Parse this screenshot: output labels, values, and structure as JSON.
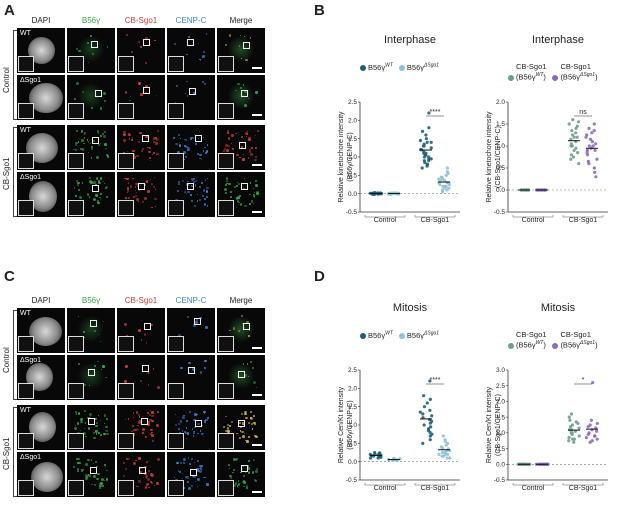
{
  "panels": {
    "A": {
      "letter": "A",
      "headers": [
        "DAPI",
        "B56γ",
        "CB-Sgo1",
        "CENP-C",
        "Merge"
      ],
      "rows": [
        "WT",
        "ΔSgo1",
        "WT",
        "ΔSgo1"
      ],
      "groups": [
        "Control",
        "CB-Sgo1"
      ]
    },
    "C": {
      "letter": "C",
      "headers": [
        "DAPI",
        "B56γ",
        "CB-Sgo1",
        "CENP-C",
        "Merge"
      ],
      "rows": [
        "WT",
        "ΔSgo1",
        "WT",
        "ΔSgo1"
      ],
      "groups": [
        "Control",
        "CB-Sgo1"
      ]
    },
    "B": {
      "letter": "B"
    },
    "D": {
      "letter": "D"
    }
  },
  "colors": {
    "dapi": "#bdbdbd",
    "b56": "#3aa34a",
    "sgo": "#d23a3a",
    "cenp": "#3b7fd6",
    "teal_dark": "#1f5f7a",
    "teal_light": "#8ec3d4",
    "grey_green": "#6d9e8c",
    "purple": "#8a6bbf"
  },
  "chart_data": [
    {
      "id": "B-left",
      "type": "scatter",
      "title": "Interphase",
      "ylabel": "Relative kinetochore intensity (B56γ/CENP-C)",
      "ylim": [
        -0.5,
        2.5
      ],
      "yticks": [
        "-0.5",
        "0.0",
        "0.5",
        "1.0",
        "1.5",
        "2.0",
        "2.5"
      ],
      "categories": [
        "Control",
        "CB-Sgo1"
      ],
      "legend": [
        {
          "name": "B56γ",
          "sup": "WT"
        },
        {
          "name": "B56γ",
          "sup": "ΔSgo1"
        }
      ],
      "significance": "****",
      "series": [
        {
          "name": "B56γ WT",
          "values": [
            [
              0.02,
              -0.02,
              0.0,
              0.03,
              -0.01,
              0.01,
              0.0,
              0.02,
              -0.02,
              0.01,
              0.0,
              0.01,
              -0.01,
              0.02,
              0.0,
              0.01,
              0.0,
              -0.01,
              0.02,
              0.01
            ],
            [
              1.0,
              1.2,
              0.9,
              1.4,
              0.8,
              1.1,
              1.6,
              1.3,
              0.7,
              1.05,
              1.5,
              0.95,
              1.25,
              1.8,
              0.85,
              1.15,
              1.35,
              0.75,
              1.45,
              2.2,
              1.0,
              1.1,
              0.9,
              1.7,
              1.2,
              0.8,
              1.05,
              1.3,
              0.95,
              1.4
            ]
          ]
        },
        {
          "name": "B56γ ΔSgo1",
          "values": [
            [
              0.0,
              0.01,
              -0.01,
              0.02,
              0.0,
              0.01,
              -0.02,
              0.0,
              0.01,
              0.02,
              -0.01,
              0.0,
              0.01,
              0.0,
              0.02,
              -0.01,
              0.0,
              0.01
            ],
            [
              0.3,
              0.2,
              0.5,
              0.1,
              0.4,
              0.25,
              0.6,
              0.15,
              0.35,
              0.45,
              0.05,
              0.3,
              0.2,
              0.55,
              0.4,
              0.1,
              0.3,
              0.25,
              0.7,
              0.35,
              0.15,
              0.45,
              0.2,
              0.3
            ]
          ]
        }
      ]
    },
    {
      "id": "B-right",
      "type": "scatter",
      "title": "Interphase",
      "ylabel": "Relative kinetochore intensity (CB-Sgo1/CENP-C)",
      "ylim": [
        -0.5,
        2.0
      ],
      "yticks": [
        "-0.5",
        "0.0",
        "0.5",
        "1.0",
        "1.5",
        "2.0"
      ],
      "categories": [
        "Control",
        "CB-Sgo1"
      ],
      "legend": [
        {
          "name": "CB-Sgo1",
          "sub": "(B56γ",
          "sup": "WT"
        },
        {
          "name": "CB-Sgo1",
          "sub": "(B56γ",
          "sup": "ΔSgo1"
        }
      ],
      "significance": "ns",
      "series": [
        {
          "name": "CB-Sgo1 (B56γ WT)",
          "values": [
            [
              0.0,
              0.0,
              0.0,
              0.0,
              0.0,
              0.0,
              0.0,
              0.0,
              0.0,
              0.0,
              0.0,
              0.0,
              0.0,
              0.0,
              0.0,
              0.0
            ],
            [
              1.0,
              1.3,
              0.8,
              1.5,
              0.7,
              1.1,
              1.6,
              0.9,
              1.2,
              1.4,
              0.6,
              1.05,
              1.35,
              0.85,
              1.25,
              1.45,
              0.95,
              1.15,
              0.75,
              1.55,
              1.0,
              1.2
            ]
          ]
        },
        {
          "name": "CB-Sgo1 (B56γ ΔSgo1)",
          "values": [
            [
              0.0,
              0.0,
              0.0,
              0.0,
              0.0,
              0.0,
              0.0,
              0.0,
              0.0,
              0.0,
              0.0,
              0.0,
              0.0,
              0.0,
              0.0,
              0.0
            ],
            [
              0.9,
              1.2,
              0.6,
              1.4,
              0.5,
              1.0,
              1.5,
              0.8,
              1.1,
              1.3,
              0.4,
              0.95,
              1.25,
              0.7,
              1.15,
              0.3,
              0.85,
              1.05,
              0.65,
              1.35,
              0.9,
              1.0
            ]
          ]
        }
      ]
    },
    {
      "id": "D-left",
      "type": "scatter",
      "title": "Mitosis",
      "ylabel": "Relative Cen/Kt intensity (B56γ/CENP-C)",
      "ylim": [
        -0.5,
        2.5
      ],
      "yticks": [
        "-0.5",
        "0.0",
        "0.5",
        "1.0",
        "1.5",
        "2.0",
        "2.5"
      ],
      "categories": [
        "Control",
        "CB-Sgo1"
      ],
      "legend": [
        {
          "name": "B56γ",
          "sup": "WT"
        },
        {
          "name": "B56γ",
          "sup": "ΔSgo1"
        }
      ],
      "significance": "****",
      "series": [
        {
          "name": "B56γ WT",
          "values": [
            [
              0.15,
              0.2,
              0.1,
              0.25,
              0.18,
              0.12,
              0.22,
              0.16,
              0.2,
              0.14,
              0.1,
              0.24,
              0.17,
              0.13,
              0.19
            ],
            [
              1.0,
              1.3,
              0.8,
              1.6,
              0.6,
              1.1,
              1.8,
              0.9,
              1.4,
              0.7,
              1.2,
              2.2,
              0.85,
              1.05,
              1.5,
              0.5,
              1.25,
              0.95,
              1.7,
              0.75,
              1.15,
              1.35
            ]
          ]
        },
        {
          "name": "B56γ ΔSgo1",
          "values": [
            [
              0.05,
              0.03,
              0.08,
              0.06,
              0.04,
              0.07,
              0.05,
              0.09,
              0.06,
              0.04
            ],
            [
              0.3,
              0.2,
              0.5,
              0.1,
              0.4,
              0.25,
              0.6,
              0.15,
              0.35,
              0.45,
              0.2,
              0.3,
              0.7,
              0.1,
              0.25,
              0.4,
              0.35,
              0.15,
              0.55,
              0.2
            ]
          ]
        }
      ]
    },
    {
      "id": "D-right",
      "type": "scatter",
      "title": "Mitosis",
      "ylabel": "Relative Cen/Kt intensity (CB-Sgo1/CENP-C)",
      "ylim": [
        -0.5,
        3.0
      ],
      "yticks": [
        "-0.5",
        "0.0",
        "0.5",
        "1.0",
        "1.5",
        "2.0",
        "2.5",
        "3.0"
      ],
      "categories": [
        "Control",
        "CB-Sgo1"
      ],
      "legend": [
        {
          "name": "CB-Sgo1",
          "sub": "(B56γ",
          "sup": "WT"
        },
        {
          "name": "CB-Sgo1",
          "sub": "(B56γ",
          "sup": "ΔSgo1"
        }
      ],
      "significance": "*",
      "series": [
        {
          "name": "CB-Sgo1 (B56γ WT)",
          "values": [
            [
              0.0,
              0.0,
              0.0,
              0.0,
              0.0,
              0.0,
              0.0,
              0.0,
              0.0,
              0.0,
              0.0,
              0.0,
              0.0,
              0.0
            ],
            [
              1.0,
              1.3,
              0.8,
              1.5,
              0.7,
              1.1,
              1.2,
              0.9,
              1.4,
              0.75,
              1.05,
              1.25,
              0.85,
              1.15,
              0.95,
              1.35,
              1.6,
              0.8,
              1.0,
              1.1
            ]
          ]
        },
        {
          "name": "CB-Sgo1 (B56γ ΔSgo1)",
          "values": [
            [
              0.0,
              0.0,
              0.0,
              0.0,
              0.0,
              0.0,
              0.0,
              0.0,
              0.0,
              0.0,
              0.0,
              0.0,
              0.0,
              0.0
            ],
            [
              0.9,
              1.2,
              0.7,
              1.0,
              1.3,
              0.8,
              1.1,
              2.6,
              0.95,
              1.05,
              1.4,
              0.75,
              1.15,
              0.85,
              1.25,
              0.9
            ]
          ]
        }
      ]
    }
  ]
}
